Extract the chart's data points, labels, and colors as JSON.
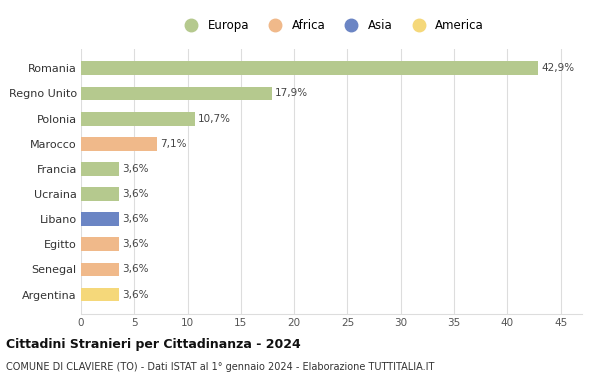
{
  "categories": [
    "Romania",
    "Regno Unito",
    "Polonia",
    "Marocco",
    "Francia",
    "Ucraina",
    "Libano",
    "Egitto",
    "Senegal",
    "Argentina"
  ],
  "values": [
    42.9,
    17.9,
    10.7,
    7.1,
    3.6,
    3.6,
    3.6,
    3.6,
    3.6,
    3.6
  ],
  "labels": [
    "42,9%",
    "17,9%",
    "10,7%",
    "7,1%",
    "3,6%",
    "3,6%",
    "3,6%",
    "3,6%",
    "3,6%",
    "3,6%"
  ],
  "bar_colors": [
    "#b5c98e",
    "#b5c98e",
    "#b5c98e",
    "#f0b98a",
    "#b5c98e",
    "#b5c98e",
    "#6b85c4",
    "#f0b98a",
    "#f0b98a",
    "#f5d87a"
  ],
  "legend_labels": [
    "Europa",
    "Africa",
    "Asia",
    "America"
  ],
  "legend_colors": [
    "#b5c98e",
    "#f0b98a",
    "#6b85c4",
    "#f5d87a"
  ],
  "title": "Cittadini Stranieri per Cittadinanza - 2024",
  "subtitle": "COMUNE DI CLAVIERE (TO) - Dati ISTAT al 1° gennaio 2024 - Elaborazione TUTTITALIA.IT",
  "xlim": [
    0,
    47
  ],
  "xticks": [
    0,
    5,
    10,
    15,
    20,
    25,
    30,
    35,
    40,
    45
  ],
  "background_color": "#ffffff",
  "grid_color": "#dddddd"
}
